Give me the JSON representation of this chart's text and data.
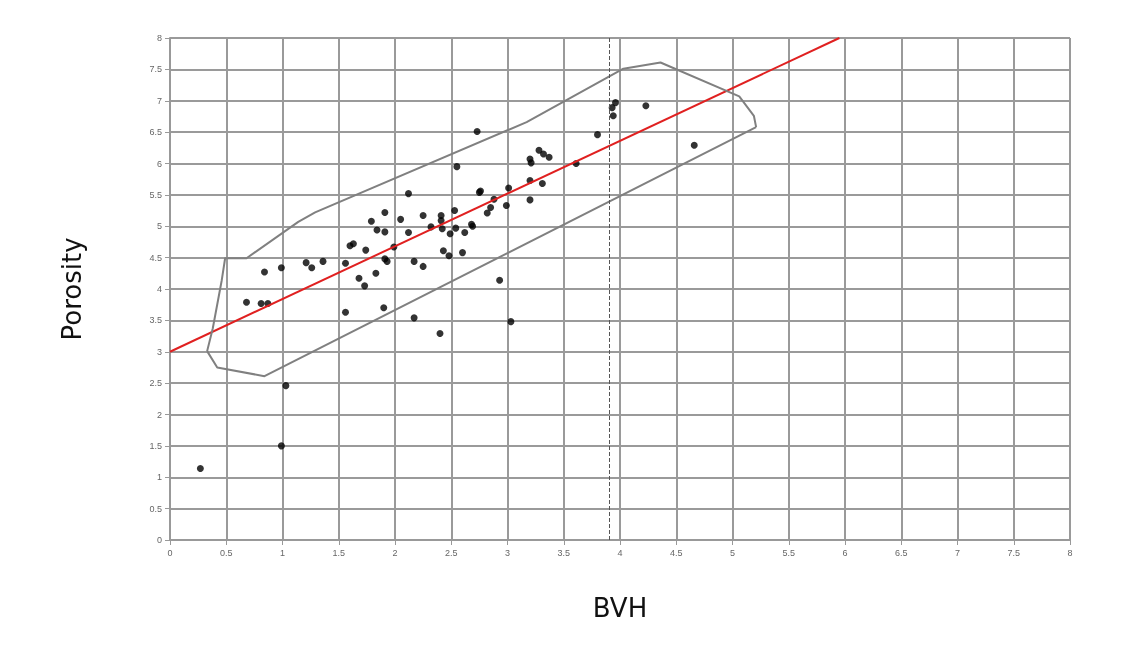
{
  "chart_data": {
    "type": "scatter",
    "xlabel": "BVH",
    "ylabel": "Porosity",
    "xlim": [
      0,
      8
    ],
    "xticks": [
      0,
      0.5,
      1,
      1.5,
      2,
      2.5,
      3,
      3.5,
      4,
      4.5,
      5,
      5.5,
      6,
      6.5,
      7,
      7.5,
      8
    ],
    "ylim": [
      0,
      8
    ],
    "yticks": [
      0,
      0.5,
      1,
      1.5,
      2,
      2.5,
      3,
      3.5,
      4,
      4.5,
      5,
      5.5,
      6,
      6.5,
      7,
      7.5,
      8
    ],
    "grid": true,
    "marker": "circle",
    "ref_lines": [
      {
        "axis": "x",
        "value": 3.9,
        "color": "#555555",
        "line_style": "dashed"
      }
    ],
    "series": [
      {
        "type": "scatter",
        "color": "#000000",
        "x": [
          0.27,
          0.99,
          1.03,
          0.68,
          0.81,
          0.87,
          0.84,
          0.99,
          1.21,
          1.26,
          1.36,
          1.56,
          1.56,
          1.6,
          1.63,
          1.68,
          1.73,
          1.74,
          1.79,
          1.83,
          1.84,
          1.91,
          1.91,
          1.9,
          1.91,
          1.93,
          1.99,
          2.05,
          2.12,
          2.12,
          2.17,
          2.17,
          2.25,
          2.25,
          2.32,
          2.41,
          2.41,
          2.43,
          2.48,
          2.42,
          2.54,
          2.49,
          2.55,
          2.53,
          2.6,
          2.62,
          2.68,
          2.69,
          2.73,
          2.75,
          2.76,
          2.82,
          2.85,
          2.88,
          2.93,
          2.99,
          3.01,
          3.03,
          2.4,
          3.2,
          3.21,
          3.28,
          3.32,
          3.37,
          3.2,
          3.31,
          3.2,
          3.61,
          3.8,
          3.93,
          3.94,
          3.96,
          4.23,
          4.66
        ],
        "values": [
          1.14,
          1.5,
          2.46,
          3.79,
          3.77,
          3.77,
          4.27,
          4.34,
          4.42,
          4.34,
          4.44,
          4.41,
          3.63,
          4.69,
          4.72,
          4.17,
          4.05,
          4.62,
          5.08,
          4.25,
          4.94,
          4.91,
          5.22,
          3.7,
          4.48,
          4.44,
          4.67,
          5.11,
          4.9,
          5.52,
          4.44,
          3.54,
          5.17,
          4.36,
          4.99,
          5.17,
          5.09,
          4.61,
          4.53,
          4.96,
          4.97,
          4.88,
          5.95,
          5.25,
          4.58,
          4.9,
          5.03,
          5.0,
          6.51,
          5.54,
          5.56,
          5.21,
          5.3,
          5.43,
          4.14,
          5.33,
          5.61,
          3.48,
          3.29,
          6.07,
          6.01,
          6.21,
          6.15,
          6.1,
          5.73,
          5.68,
          5.42,
          6.0,
          6.46,
          6.89,
          6.76,
          6.97,
          6.92,
          6.29
        ]
      },
      {
        "type": "line",
        "color": "#e02020",
        "marker": "none",
        "line_style": "solid",
        "x": [
          0,
          5.95
        ],
        "values": [
          3,
          8
        ]
      },
      {
        "type": "line",
        "color": "#808080",
        "marker": "none",
        "line_style": "solid",
        "x": [
          0.33,
          0.38,
          0.46,
          0.49,
          0.68,
          1.14,
          1.29,
          3.17,
          4.03,
          4.36,
          5.06,
          5.19,
          5.21
        ],
        "values": [
          3.01,
          3.37,
          4.14,
          4.49,
          4.49,
          5.07,
          5.22,
          6.66,
          7.51,
          7.61,
          7.07,
          6.76,
          6.58
        ]
      },
      {
        "type": "line",
        "color": "#808080",
        "marker": "none",
        "line_style": "solid",
        "x": [
          0.33,
          0.42,
          0.84,
          5.21
        ],
        "values": [
          3.01,
          2.75,
          2.61,
          6.58
        ]
      }
    ]
  }
}
